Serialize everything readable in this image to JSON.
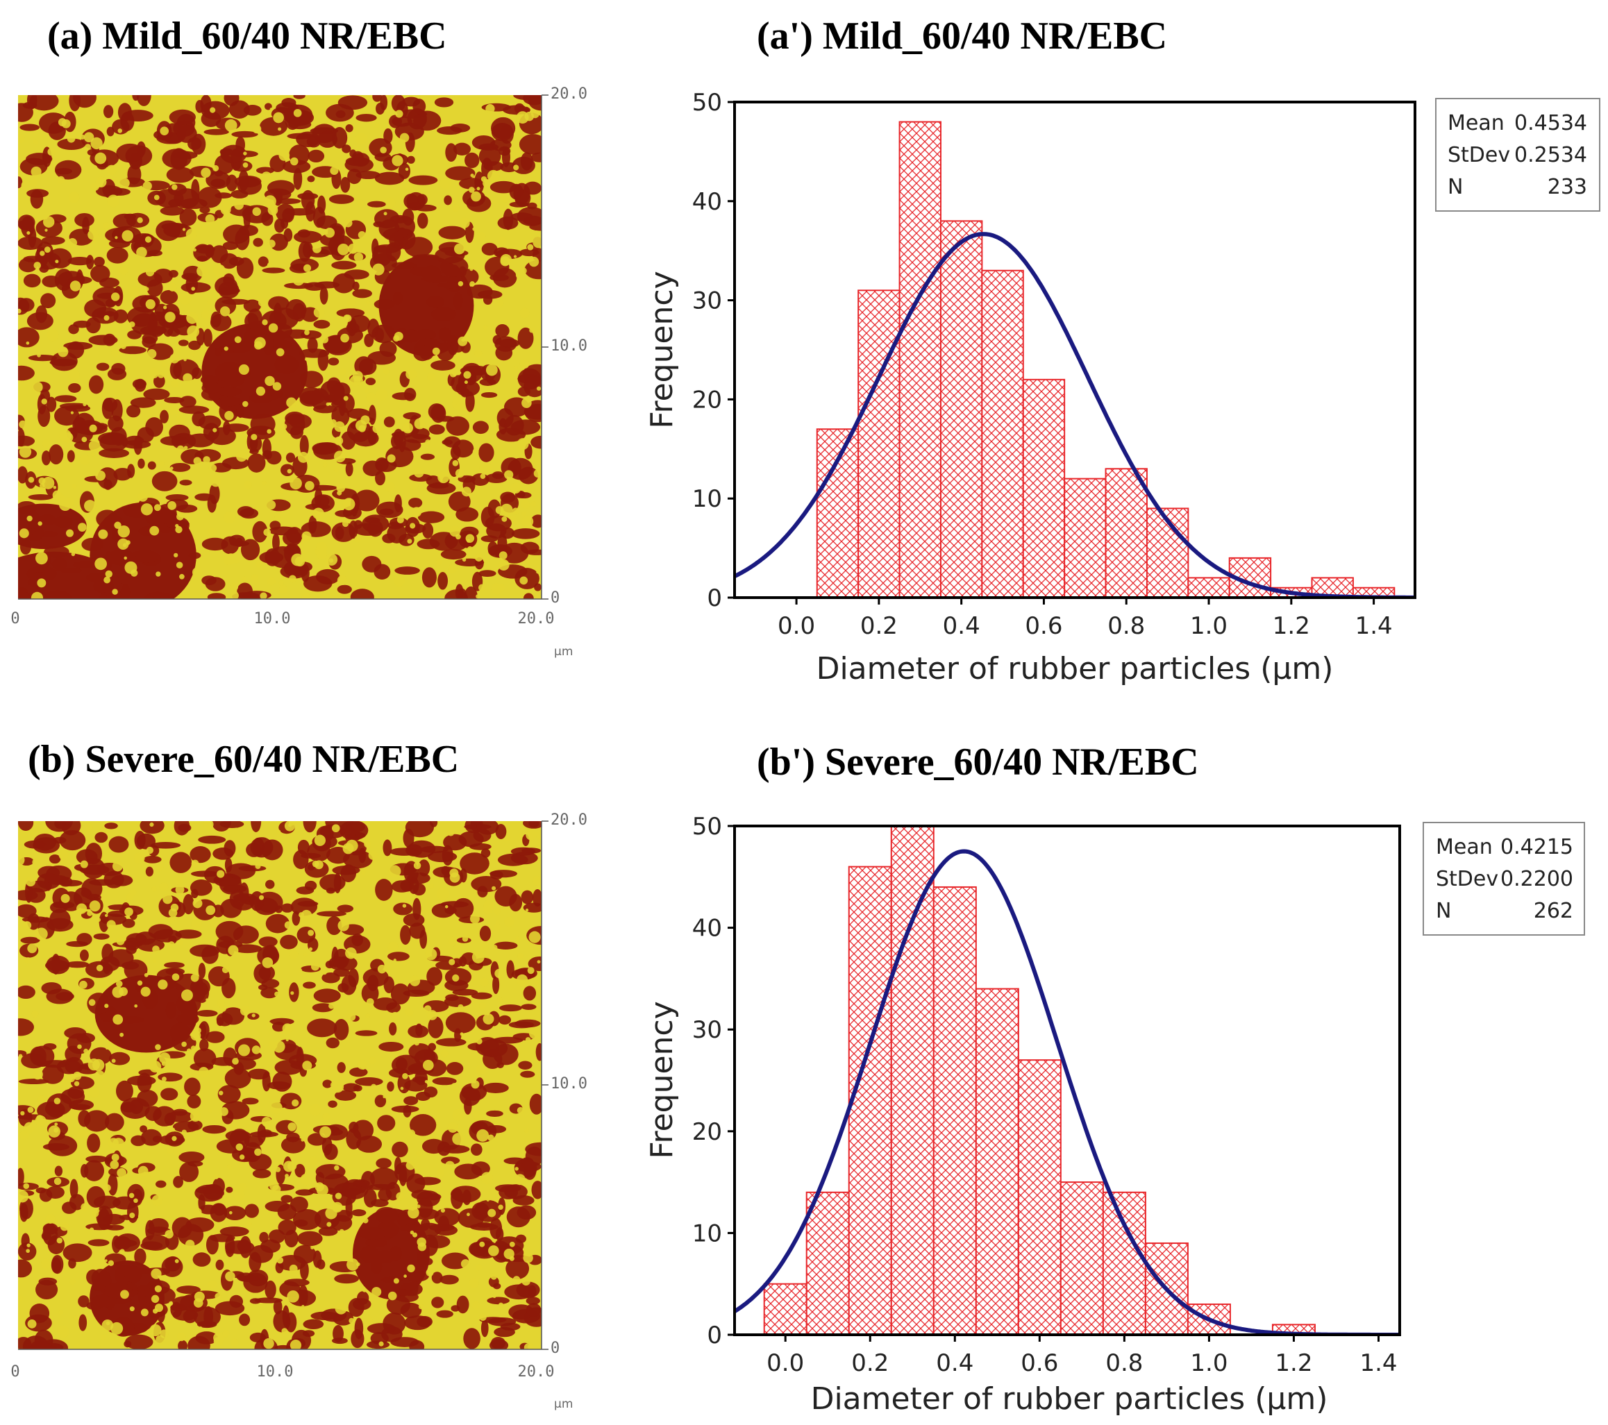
{
  "figure": {
    "panels": [
      {
        "label": "(a) Mild_60/40 NR/EBC",
        "afm": {
          "y_ticks": [
            "20.0",
            "10.0",
            "0"
          ],
          "x_ticks": [
            "0",
            "10.0",
            "20.0"
          ],
          "unit": "µm",
          "dark_color": "#8e1a0a",
          "light_color": "#e3d531",
          "seed": 7,
          "blobs": 5
        }
      },
      {
        "label": "(b) Severe_60/40 NR/EBC",
        "afm": {
          "y_ticks": [
            "20.0",
            "10.0",
            "0"
          ],
          "x_ticks": [
            "0",
            "10.0",
            "20.0"
          ],
          "unit": "µm",
          "dark_color": "#8e1a0a",
          "light_color": "#e3d531",
          "seed": 23,
          "blobs": 3
        }
      }
    ]
  },
  "chart_data": [
    {
      "type": "bar",
      "title": "(a') Mild_60/40 NR/EBC",
      "xlabel": "Diameter of rubber particles (µm)",
      "ylabel": "Frequency",
      "bin_width": 0.1,
      "categories": [
        "0.0",
        "0.1",
        "0.2",
        "0.3",
        "0.4",
        "0.5",
        "0.6",
        "0.7",
        "0.8",
        "0.9",
        "1.0",
        "1.1",
        "1.2",
        "1.3",
        "1.4"
      ],
      "values": [
        0,
        17,
        31,
        48,
        38,
        33,
        22,
        12,
        13,
        9,
        2,
        4,
        1,
        2,
        1
      ],
      "xlim": [
        -0.15,
        1.5
      ],
      "ylim": [
        0,
        50
      ],
      "x_ticks": [
        "0.0",
        "0.2",
        "0.4",
        "0.6",
        "0.8",
        "1.0",
        "1.2",
        "1.4"
      ],
      "y_ticks": [
        "0",
        "10",
        "20",
        "30",
        "40",
        "50"
      ],
      "fit": {
        "type": "normal",
        "mean": 0.4534,
        "stdev": 0.2534,
        "n": 233
      },
      "stats": [
        {
          "label": "Mean",
          "value": "0.4534"
        },
        {
          "label": "StDev",
          "value": "0.2534"
        },
        {
          "label": "N",
          "value": "233"
        }
      ],
      "bar_color": "#e8262a",
      "curve_color": "#1a1a80"
    },
    {
      "type": "bar",
      "title": "(b') Severe_60/40 NR/EBC",
      "xlabel": "Diameter of rubber particles (µm)",
      "ylabel": "Frequency",
      "bin_width": 0.1,
      "categories": [
        "0.0",
        "0.1",
        "0.2",
        "0.3",
        "0.4",
        "0.5",
        "0.6",
        "0.7",
        "0.8",
        "0.9",
        "1.0",
        "1.1",
        "1.2"
      ],
      "values": [
        5,
        14,
        46,
        50,
        44,
        34,
        27,
        15,
        14,
        9,
        3,
        0,
        1
      ],
      "xlim": [
        -0.12,
        1.45
      ],
      "ylim": [
        0,
        50
      ],
      "x_ticks": [
        "0.0",
        "0.2",
        "0.4",
        "0.6",
        "0.8",
        "1.0",
        "1.2",
        "1.4"
      ],
      "y_ticks": [
        "0",
        "10",
        "20",
        "30",
        "40",
        "50"
      ],
      "fit": {
        "type": "normal",
        "mean": 0.4215,
        "stdev": 0.22,
        "n": 262
      },
      "stats": [
        {
          "label": "Mean",
          "value": "0.4215"
        },
        {
          "label": "StDev",
          "value": "0.2200"
        },
        {
          "label": "N",
          "value": "262"
        }
      ],
      "bar_color": "#e8262a",
      "curve_color": "#1a1a80"
    }
  ]
}
